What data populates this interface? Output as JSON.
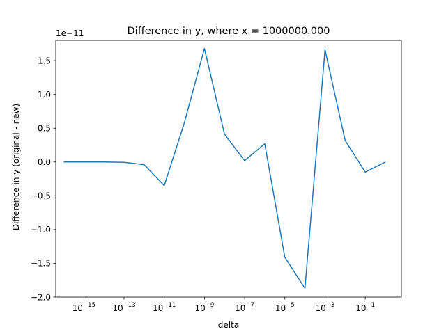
{
  "chart_data": {
    "type": "line",
    "title": "Difference in y, where x = 1000000.000",
    "xlabel": "delta",
    "ylabel": "Difference in y (original - new)",
    "y_offset_text": "1e−11",
    "x_scale": "log",
    "xlim": [
      4e-17,
      6.3
    ],
    "ylim": [
      -2e-11,
      1.8e-11
    ],
    "grid": false,
    "x_ticks": [
      {
        "value": 1e-15,
        "base": "10",
        "exp": "−15"
      },
      {
        "value": 1e-13,
        "base": "10",
        "exp": "−13"
      },
      {
        "value": 1e-11,
        "base": "10",
        "exp": "−11"
      },
      {
        "value": 1e-09,
        "base": "10",
        "exp": "−9"
      },
      {
        "value": 1e-07,
        "base": "10",
        "exp": "−7"
      },
      {
        "value": 1e-05,
        "base": "10",
        "exp": "−5"
      },
      {
        "value": 0.001,
        "base": "10",
        "exp": "−3"
      },
      {
        "value": 0.1,
        "base": "10",
        "exp": "−1"
      }
    ],
    "y_ticks": [
      {
        "value": 1.5e-11,
        "label": "1.5"
      },
      {
        "value": 1e-11,
        "label": "1.0"
      },
      {
        "value": 5e-12,
        "label": "0.5"
      },
      {
        "value": 0,
        "label": "0.0"
      },
      {
        "value": -5e-12,
        "label": "−0.5"
      },
      {
        "value": -1e-11,
        "label": "−1.0"
      },
      {
        "value": -1.5e-11,
        "label": "−1.5"
      },
      {
        "value": -2e-11,
        "label": "−2.0"
      }
    ],
    "series": [
      {
        "color": "#1f77b4",
        "x": [
          1e-16,
          1e-15,
          1e-14,
          1e-13,
          1e-12,
          1e-11,
          1e-10,
          1e-09,
          1e-08,
          1e-07,
          1e-06,
          1e-05,
          0.0001,
          0.001,
          0.01,
          0.1,
          1
        ],
        "y": [
          0,
          0,
          0,
          -5e-14,
          -4e-13,
          -3.5e-12,
          5.8e-12,
          1.68e-11,
          4.1e-12,
          2e-13,
          2.7e-12,
          -1.41e-11,
          -1.87e-11,
          1.66e-11,
          3.2e-12,
          -1.5e-12,
          0
        ]
      }
    ]
  }
}
